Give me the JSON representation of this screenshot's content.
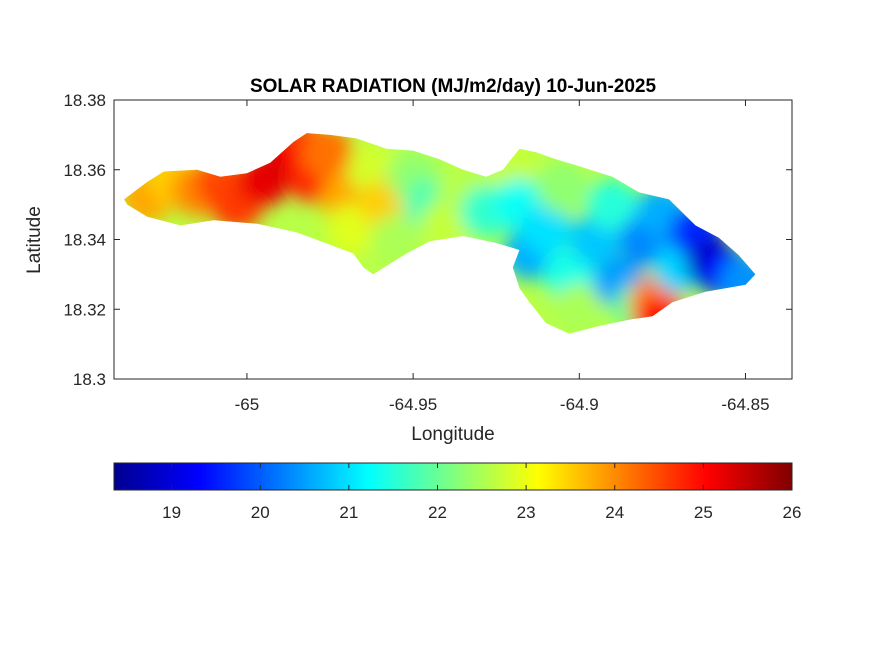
{
  "chart_data": {
    "type": "heatmap",
    "title": "SOLAR RADIATION (MJ/m2/day) 10-Jun-2025",
    "xlabel": "Longitude",
    "ylabel": "Latitude",
    "xlim": [
      -65.04,
      -64.836
    ],
    "ylim": [
      18.3,
      18.38
    ],
    "x_ticks": [
      -65.0,
      -64.95,
      -64.9,
      -64.85
    ],
    "x_tick_labels": [
      "-65",
      "-64.95",
      "-64.9",
      "-64.85"
    ],
    "y_ticks": [
      18.3,
      18.32,
      18.34,
      18.36,
      18.38
    ],
    "y_tick_labels": [
      "18.3",
      "18.32",
      "18.34",
      "18.36",
      "18.38"
    ],
    "colorbar": {
      "colormap": "jet",
      "range": [
        18.35,
        26.0
      ],
      "ticks": [
        19,
        20,
        21,
        22,
        23,
        24,
        25,
        26
      ],
      "tick_labels": [
        "19",
        "20",
        "21",
        "22",
        "23",
        "24",
        "25",
        "26"
      ],
      "location": "bottom"
    },
    "colormap_stops": [
      "#00008f",
      "#0000ff",
      "#00ffff",
      "#ffff00",
      "#ff0000",
      "#800000"
    ],
    "island_outline_lonlat": [
      [
        -65.037,
        18.3515
      ],
      [
        -65.03,
        18.3565
      ],
      [
        -65.025,
        18.3595
      ],
      [
        -65.015,
        18.36
      ],
      [
        -65.008,
        18.358
      ],
      [
        -65.0,
        18.359
      ],
      [
        -64.993,
        18.362
      ],
      [
        -64.986,
        18.368
      ],
      [
        -64.982,
        18.3705
      ],
      [
        -64.975,
        18.37
      ],
      [
        -64.967,
        18.369
      ],
      [
        -64.958,
        18.366
      ],
      [
        -64.95,
        18.3655
      ],
      [
        -64.942,
        18.363
      ],
      [
        -64.935,
        18.36
      ],
      [
        -64.928,
        18.358
      ],
      [
        -64.923,
        18.36
      ],
      [
        -64.918,
        18.366
      ],
      [
        -64.913,
        18.365
      ],
      [
        -64.907,
        18.363
      ],
      [
        -64.9,
        18.361
      ],
      [
        -64.89,
        18.358
      ],
      [
        -64.882,
        18.3535
      ],
      [
        -64.873,
        18.3515
      ],
      [
        -64.865,
        18.344
      ],
      [
        -64.858,
        18.3405
      ],
      [
        -64.852,
        18.3355
      ],
      [
        -64.847,
        18.33
      ],
      [
        -64.85,
        18.327
      ],
      [
        -64.862,
        18.325
      ],
      [
        -64.872,
        18.322
      ],
      [
        -64.878,
        18.318
      ],
      [
        -64.885,
        18.317
      ],
      [
        -64.895,
        18.315
      ],
      [
        -64.903,
        18.313
      ],
      [
        -64.91,
        18.316
      ],
      [
        -64.915,
        18.322
      ],
      [
        -64.918,
        18.326
      ],
      [
        -64.92,
        18.332
      ],
      [
        -64.918,
        18.337
      ],
      [
        -64.925,
        18.339
      ],
      [
        -64.935,
        18.341
      ],
      [
        -64.945,
        18.3395
      ],
      [
        -64.952,
        18.336
      ],
      [
        -64.957,
        18.333
      ],
      [
        -64.962,
        18.33
      ],
      [
        -64.965,
        18.332
      ],
      [
        -64.968,
        18.336
      ],
      [
        -64.975,
        18.3385
      ],
      [
        -64.985,
        18.342
      ],
      [
        -64.997,
        18.3445
      ],
      [
        -65.01,
        18.3455
      ],
      [
        -65.02,
        18.344
      ],
      [
        -65.03,
        18.3465
      ],
      [
        -65.036,
        18.35
      ]
    ],
    "samples": [
      {
        "lon": -65.03,
        "lat": 18.352,
        "value": 23.8
      },
      {
        "lon": -65.022,
        "lat": 18.357,
        "value": 23.5
      },
      {
        "lon": -65.015,
        "lat": 18.354,
        "value": 24.0
      },
      {
        "lon": -65.008,
        "lat": 18.356,
        "value": 24.5
      },
      {
        "lon": -65.003,
        "lat": 18.35,
        "value": 24.6
      },
      {
        "lon": -64.995,
        "lat": 18.357,
        "value": 25.2
      },
      {
        "lon": -64.988,
        "lat": 18.362,
        "value": 25.3
      },
      {
        "lon": -64.982,
        "lat": 18.366,
        "value": 25.0
      },
      {
        "lon": -64.98,
        "lat": 18.358,
        "value": 24.8
      },
      {
        "lon": -64.976,
        "lat": 18.365,
        "value": 24.2
      },
      {
        "lon": -64.97,
        "lat": 18.352,
        "value": 23.8
      },
      {
        "lon": -64.968,
        "lat": 18.343,
        "value": 22.9
      },
      {
        "lon": -64.962,
        "lat": 18.36,
        "value": 22.8
      },
      {
        "lon": -64.958,
        "lat": 18.35,
        "value": 23.5
      },
      {
        "lon": -64.955,
        "lat": 18.34,
        "value": 22.5
      },
      {
        "lon": -64.95,
        "lat": 18.358,
        "value": 22.3
      },
      {
        "lon": -64.945,
        "lat": 18.35,
        "value": 21.8
      },
      {
        "lon": -64.94,
        "lat": 18.344,
        "value": 22.7
      },
      {
        "lon": -64.935,
        "lat": 18.355,
        "value": 22.6
      },
      {
        "lon": -64.928,
        "lat": 18.348,
        "value": 21.6
      },
      {
        "lon": -64.92,
        "lat": 18.362,
        "value": 22.7
      },
      {
        "lon": -64.918,
        "lat": 18.35,
        "value": 21.3
      },
      {
        "lon": -64.915,
        "lat": 18.336,
        "value": 20.6
      },
      {
        "lon": -64.91,
        "lat": 18.343,
        "value": 21.0
      },
      {
        "lon": -64.905,
        "lat": 18.355,
        "value": 22.3
      },
      {
        "lon": -64.903,
        "lat": 18.33,
        "value": 21.4
      },
      {
        "lon": -64.9,
        "lat": 18.32,
        "value": 22.5
      },
      {
        "lon": -64.895,
        "lat": 18.34,
        "value": 20.8
      },
      {
        "lon": -64.89,
        "lat": 18.35,
        "value": 21.5
      },
      {
        "lon": -64.888,
        "lat": 18.328,
        "value": 20.5
      },
      {
        "lon": -64.882,
        "lat": 18.32,
        "value": 22.0
      },
      {
        "lon": -64.88,
        "lat": 18.34,
        "value": 20.3
      },
      {
        "lon": -64.877,
        "lat": 18.322,
        "value": 24.1
      },
      {
        "lon": -64.876,
        "lat": 18.316,
        "value": 25.0
      },
      {
        "lon": -64.875,
        "lat": 18.348,
        "value": 20.6
      },
      {
        "lon": -64.87,
        "lat": 18.332,
        "value": 20.9
      },
      {
        "lon": -64.865,
        "lat": 18.342,
        "value": 19.6
      },
      {
        "lon": -64.86,
        "lat": 18.333,
        "value": 18.8
      },
      {
        "lon": -64.855,
        "lat": 18.33,
        "value": 19.4
      },
      {
        "lon": -64.85,
        "lat": 18.328,
        "value": 20.4
      }
    ]
  }
}
